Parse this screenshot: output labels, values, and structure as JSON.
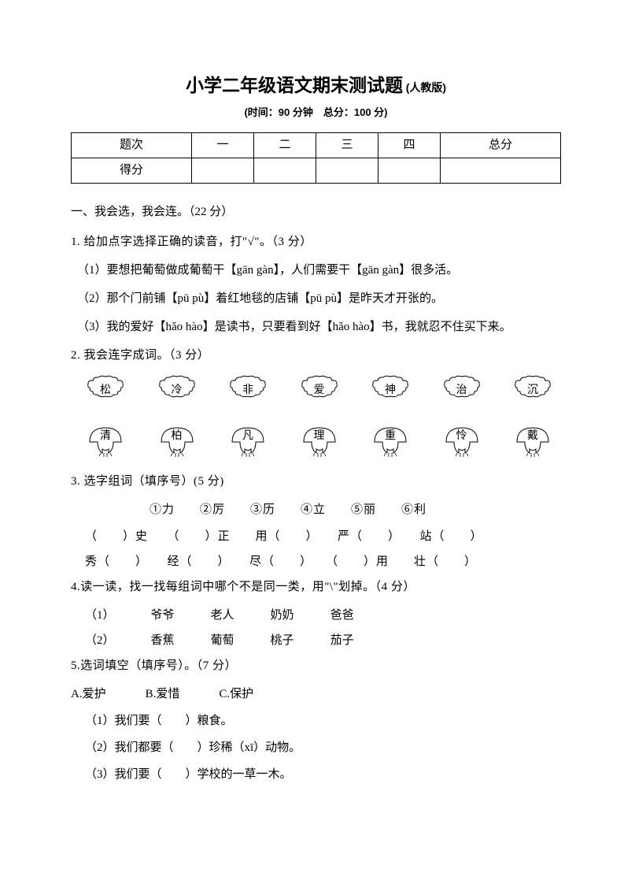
{
  "title": {
    "main": "小学二年级语文期末测试题",
    "edition": "(人教版)",
    "time": "(时间：90 分钟　总分：100 分)"
  },
  "score_table": {
    "headers": [
      "题次",
      "一",
      "二",
      "三",
      "四",
      "总分"
    ],
    "row2_label": "得分"
  },
  "section1": {
    "head": "一、我会选，我会连。（22 分）",
    "q1": {
      "title": "1. 给加点字选择正确的读音，打\"√\"。（3 分）",
      "i1": "（1）要想把葡萄做成葡萄干【gān  gàn】，人们需要干【gān  gàn】很多活。",
      "i2": "（2）那个门前铺【pū  pù】着红地毯的店铺【pū  pù】是昨天才开张的。",
      "i3": "（3）我的爱好【hǎo  hào】是读书，只要看到好【hǎo  hào】书，我就忍不住买下来。"
    },
    "q2": {
      "title": "2. 我会连字成词。（3 分）",
      "flowers": [
        "松",
        "冷",
        "非",
        "爱",
        "神",
        "治",
        "沉"
      ],
      "mushrooms": [
        "清",
        "柏",
        "凡",
        "理",
        "重",
        "怜",
        "戴"
      ]
    },
    "q3": {
      "title": "3. 选字组词（填序号）(5 分)",
      "options": "①力　　②厉　　③历　　④立　　⑤丽　　⑥利",
      "row1": "（　　）史　　（　　）正　　用（　　）　　严（　　）　　站（　　）",
      "row2": "秀（　　）　　经（　　）　　尽（　　）　　（　　）用　　壮（　　）"
    },
    "q4": {
      "title": "4.读一读，找一找每组词中哪个不是同一类，用\"\\\"划掉。（4 分）",
      "r1_label": "（1）",
      "r1": [
        "爷爷",
        "老人",
        "奶奶",
        "爸爸"
      ],
      "r2_label": "（2）",
      "r2": [
        "香蕉",
        "葡萄",
        "桃子",
        "茄子"
      ]
    },
    "q5": {
      "title": "5.选词填空（填序号）。（7 分）",
      "options": [
        "A.爱护",
        "B.爱惜",
        "C.保护"
      ],
      "i1": "（1）我们要（　　）粮食。",
      "i2": "（2）我们都要（　　）珍稀（xī）动物。",
      "i3": "（3）我们要（　　）学校的一草一木。"
    }
  }
}
